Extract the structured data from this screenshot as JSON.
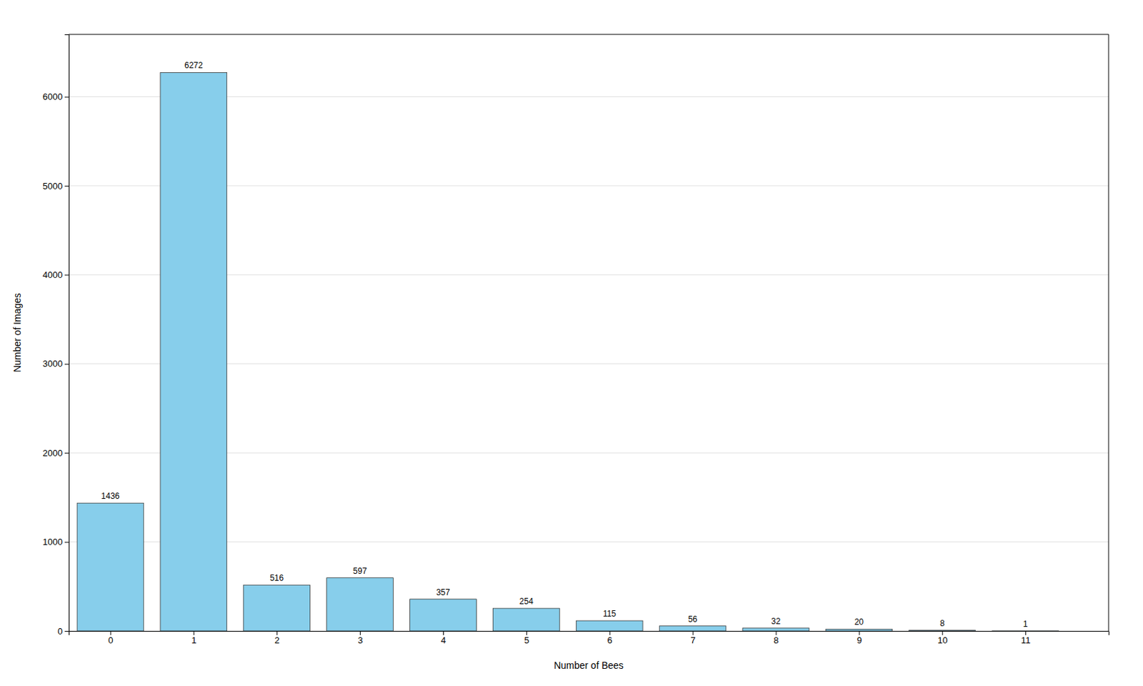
{
  "chart_data": {
    "type": "bar",
    "xlabel": "Number of Bees",
    "ylabel": "Number of Images",
    "x": [
      0,
      1,
      2,
      3,
      4,
      5,
      6,
      7,
      8,
      9,
      10,
      11
    ],
    "values": [
      1436,
      6272,
      516,
      597,
      357,
      254,
      115,
      56,
      32,
      20,
      8,
      1
    ],
    "color": "#87CEEB",
    "xlim": [
      -0.5,
      12.0
    ],
    "xticks": [
      0,
      1,
      2,
      3,
      4,
      5,
      6,
      7,
      8,
      9,
      10,
      11
    ],
    "ylim": [
      0,
      6700
    ],
    "yticks": [
      0,
      1000,
      2000,
      3000,
      4000,
      5000,
      6000
    ],
    "grid": true,
    "data_labels": true
  }
}
